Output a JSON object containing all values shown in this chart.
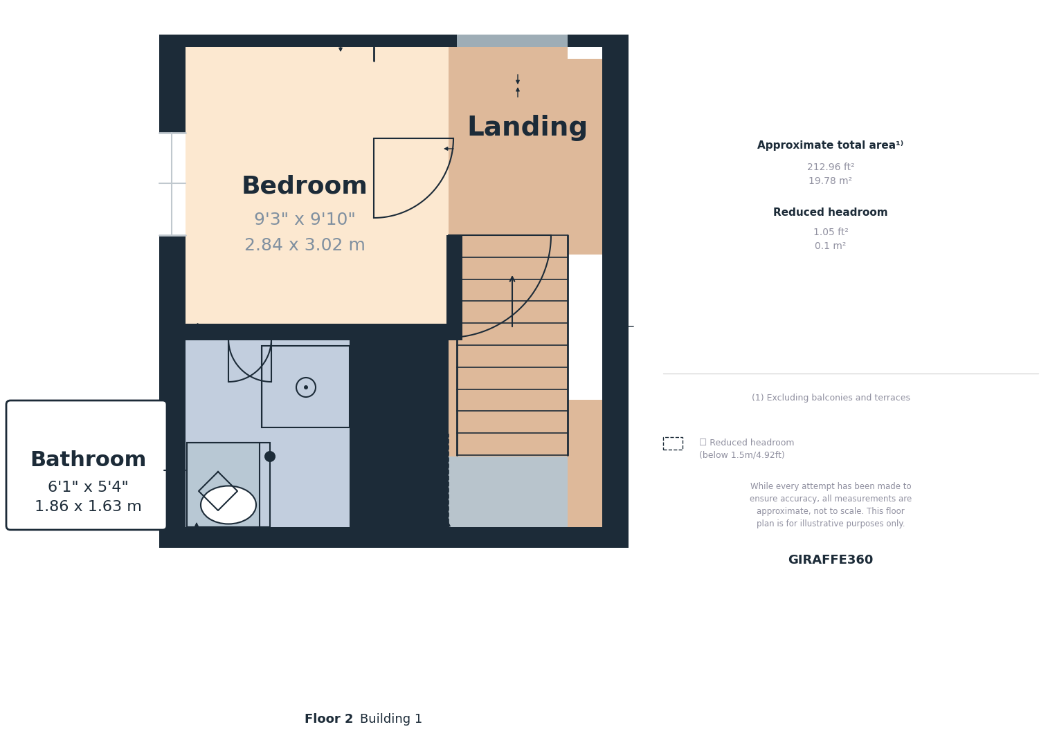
{
  "bg_color": "#ffffff",
  "wall_color": "#1c2b38",
  "bedroom_fill": "#fce8d0",
  "landing_fill": "#deb99a",
  "bathroom_fill": "#c2cede",
  "gray_fill": "#9eadb6",
  "white_fill": "#ffffff",
  "stair_fill": "#deb99a",
  "lower_gray_fill": "#b8c4cc",
  "label_color": "#1c2b38",
  "dim_color": "#8090a0",
  "sidebar_title_color": "#1c2b38",
  "sidebar_text_color": "#9090a0",
  "floor_label": "Floor 2",
  "building_label": "Building 1",
  "bedroom_label": "Bedroom",
  "bedroom_dim1": "9'3\" x 9'10\"",
  "bedroom_dim2": "2.84 x 3.02 m",
  "landing_label": "Landing",
  "bathroom_label": "Bathroom",
  "bathroom_dim1": "6'1\" x 5'4\"",
  "bathroom_dim2": "1.86 x 1.63 m",
  "approx_area_title": "Approximate total area¹⁾",
  "approx_area_ft": "212.96 ft²",
  "approx_area_m": "19.78 m²",
  "reduced_headroom_title": "Reduced headroom",
  "reduced_headroom_ft": "1.05 ft²",
  "reduced_headroom_m": "0.1 m²",
  "footnote1": "(1) Excluding balconies and terraces",
  "footnote2_line1": "☐ Reduced headroom",
  "footnote2_line2": "(below 1.5m/4.92ft)",
  "disclaimer": "While every attempt has been made to\nensure accuracy, all measurements are\napproximate, not to scale. This floor\nplan is for illustrative purposes only.",
  "brand": "GIRAFFE360"
}
